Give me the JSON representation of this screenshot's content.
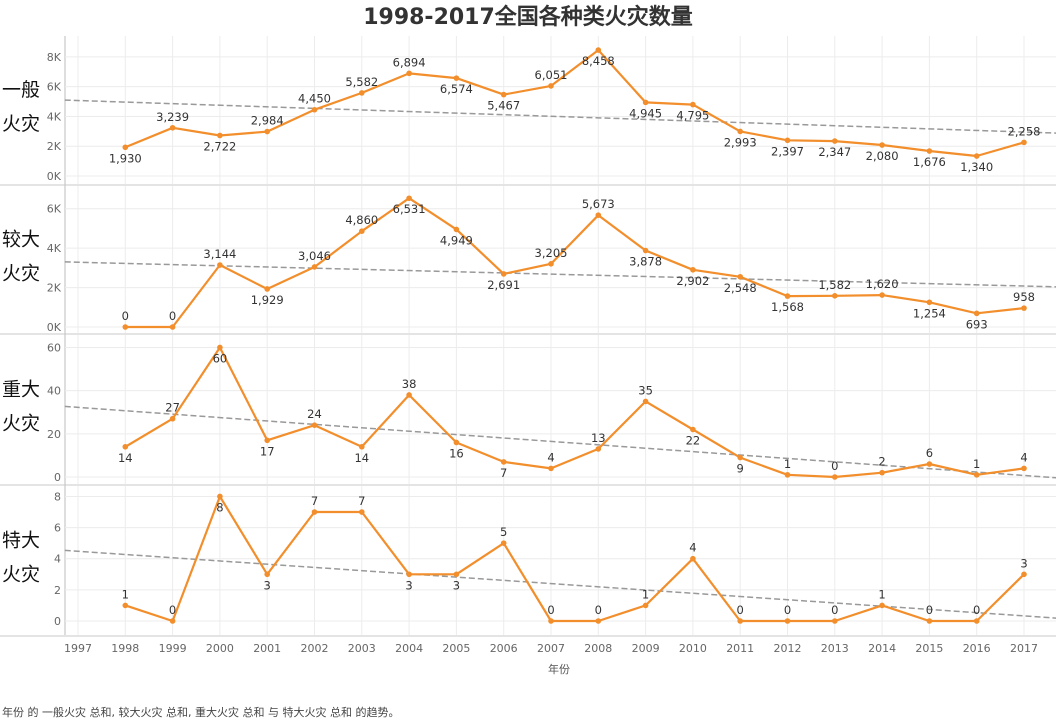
{
  "title": "1998-2017全国各种类火灾数量",
  "caption": "年份 的 一般火灾 总和, 较大火灾 总和, 重大火灾 总和 与 特大火灾 总和 的趋势。",
  "colors": {
    "line": "#f28e2b",
    "trend": "#999999",
    "grid": "#ececec"
  },
  "chart_data": {
    "type": "line",
    "title": "1998-2017全国各种类火灾数量",
    "xlabel": "年份",
    "x": [
      1998,
      1999,
      2000,
      2001,
      2002,
      2003,
      2004,
      2005,
      2006,
      2007,
      2008,
      2009,
      2010,
      2011,
      2012,
      2013,
      2014,
      2015,
      2016,
      2017
    ],
    "x_ticks": [
      "1997",
      "1998",
      "1999",
      "2000",
      "2001",
      "2002",
      "2003",
      "2004",
      "2005",
      "2006",
      "2007",
      "2008",
      "2009",
      "2010",
      "2011",
      "2012",
      "2013",
      "2014",
      "2015",
      "2016",
      "2017",
      "2018"
    ],
    "xlim": [
      1997,
      2018
    ],
    "trendline": true,
    "panels": [
      {
        "row_label": [
          "一般",
          "火灾"
        ],
        "ylim": [
          0,
          9000
        ],
        "ticks": [
          0,
          2000,
          4000,
          6000,
          8000
        ],
        "tick_labels": [
          "0K",
          "2K",
          "4K",
          "6K",
          "8K"
        ],
        "values": [
          1930,
          3239,
          2722,
          2984,
          4450,
          5582,
          6894,
          6574,
          5467,
          6051,
          8458,
          4945,
          4795,
          2993,
          2397,
          2347,
          2080,
          1676,
          1340,
          2258
        ],
        "labels": [
          "1,930",
          "3,239",
          "2,722",
          "2,984",
          "4,450",
          "5,582",
          "6,894",
          "6,574",
          "5,467",
          "6,051",
          "8,458",
          "4,945",
          "4,795",
          "2,993",
          "2,397",
          "2,347",
          "2,080",
          "1,676",
          "1,340",
          "2,258"
        ]
      },
      {
        "row_label": [
          "较大",
          "火灾"
        ],
        "ylim": [
          0,
          7000
        ],
        "ticks": [
          0,
          2000,
          4000,
          6000
        ],
        "tick_labels": [
          "0K",
          "2K",
          "4K",
          "6K"
        ],
        "values": [
          0,
          0,
          3144,
          1929,
          3046,
          4860,
          6531,
          4949,
          2691,
          3205,
          5673,
          3878,
          2902,
          2548,
          1568,
          1582,
          1620,
          1254,
          693,
          958
        ],
        "labels": [
          "0",
          "0",
          "3,144",
          "1,929",
          "3,046",
          "4,860",
          "6,531",
          "4,949",
          "2,691",
          "3,205",
          "5,673",
          "3,878",
          "2,902",
          "2,548",
          "1,568",
          "1,582",
          "1,620",
          "1,254",
          "693",
          "958"
        ]
      },
      {
        "row_label": [
          "重大",
          "火灾"
        ],
        "ylim": [
          0,
          63
        ],
        "ticks": [
          0,
          20,
          40,
          60
        ],
        "tick_labels": [
          "0",
          "20",
          "40",
          "60"
        ],
        "values": [
          14,
          27,
          60,
          17,
          24,
          14,
          38,
          16,
          7,
          4,
          13,
          35,
          22,
          9,
          1,
          0,
          2,
          6,
          1,
          4
        ],
        "labels": [
          "14",
          "27",
          "60",
          "17",
          "24",
          "14",
          "38",
          "16",
          "7",
          "4",
          "13",
          "35",
          "22",
          "9",
          "1",
          "0",
          "2",
          "6",
          "1",
          "4"
        ]
      },
      {
        "row_label": [
          "特大",
          "火灾"
        ],
        "ylim": [
          0,
          8.8
        ],
        "ticks": [
          0,
          2,
          4,
          6,
          8
        ],
        "tick_labels": [
          "0",
          "2",
          "4",
          "6",
          "8"
        ],
        "values": [
          1,
          0,
          8,
          3,
          7,
          7,
          3,
          3,
          5,
          0,
          0,
          1,
          4,
          0,
          0,
          0,
          1,
          0,
          0,
          3
        ],
        "labels": [
          "1",
          "0",
          "8",
          "3",
          "7",
          "7",
          "3",
          "3",
          "5",
          "0",
          "0",
          "1",
          "4",
          "0",
          "0",
          "0",
          "1",
          "0",
          "0",
          "3"
        ]
      }
    ]
  }
}
